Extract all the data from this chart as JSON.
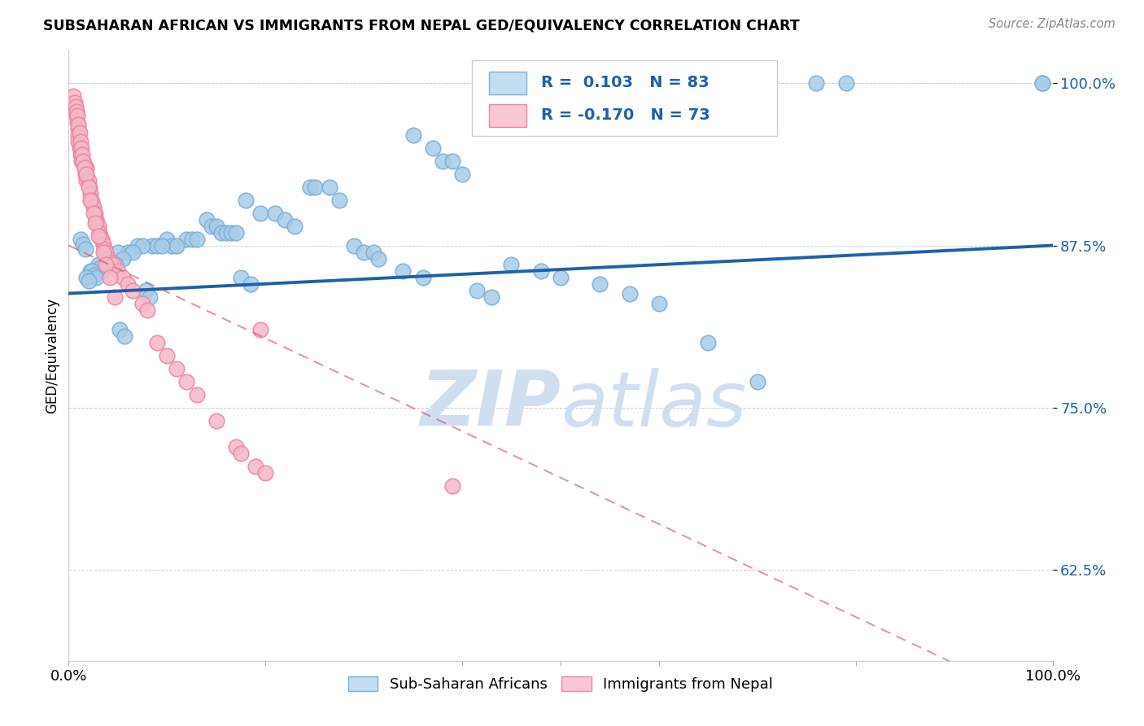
{
  "title": "SUBSAHARAN AFRICAN VS IMMIGRANTS FROM NEPAL GED/EQUIVALENCY CORRELATION CHART",
  "source": "Source: ZipAtlas.com",
  "ylabel": "GED/Equivalency",
  "xlim": [
    0.0,
    1.0
  ],
  "ylim": [
    0.555,
    1.025
  ],
  "yticks": [
    0.625,
    0.75,
    0.875,
    1.0
  ],
  "ytick_labels": [
    "62.5%",
    "75.0%",
    "87.5%",
    "100.0%"
  ],
  "legend_r1": "R =  0.103",
  "legend_n1": "N = 83",
  "legend_r2": "R = -0.170",
  "legend_n2": "N = 73",
  "blue_color": "#a8cce8",
  "blue_edge_color": "#7aafd4",
  "pink_color": "#f5b8c8",
  "pink_edge_color": "#e8889e",
  "blue_line_color": "#2060a8",
  "pink_line_color": "#d04060",
  "watermark_color": "#d0dff0",
  "blue_scatter_x": [
    0.99,
    0.99,
    0.79,
    0.76,
    0.35,
    0.37,
    0.38,
    0.39,
    0.4,
    0.245,
    0.25,
    0.265,
    0.275,
    0.18,
    0.195,
    0.14,
    0.145,
    0.15,
    0.155,
    0.16,
    0.165,
    0.17,
    0.12,
    0.125,
    0.13,
    0.1,
    0.105,
    0.11,
    0.085,
    0.09,
    0.095,
    0.07,
    0.075,
    0.06,
    0.065,
    0.05,
    0.055,
    0.038,
    0.04,
    0.042,
    0.045,
    0.048,
    0.03,
    0.032,
    0.034,
    0.022,
    0.024,
    0.026,
    0.028,
    0.018,
    0.02,
    0.21,
    0.22,
    0.23,
    0.29,
    0.3,
    0.31,
    0.315,
    0.45,
    0.48,
    0.5,
    0.54,
    0.57,
    0.6,
    0.65,
    0.7,
    0.34,
    0.36,
    0.415,
    0.43,
    0.175,
    0.185,
    0.078,
    0.082,
    0.052,
    0.057,
    0.012,
    0.015,
    0.017
  ],
  "blue_scatter_y": [
    1.0,
    1.0,
    1.0,
    1.0,
    0.96,
    0.95,
    0.94,
    0.94,
    0.93,
    0.92,
    0.92,
    0.92,
    0.91,
    0.91,
    0.9,
    0.895,
    0.89,
    0.89,
    0.885,
    0.885,
    0.885,
    0.885,
    0.88,
    0.88,
    0.88,
    0.88,
    0.875,
    0.875,
    0.875,
    0.875,
    0.875,
    0.875,
    0.875,
    0.87,
    0.87,
    0.87,
    0.865,
    0.86,
    0.86,
    0.86,
    0.86,
    0.86,
    0.86,
    0.858,
    0.855,
    0.855,
    0.855,
    0.852,
    0.85,
    0.85,
    0.848,
    0.9,
    0.895,
    0.89,
    0.875,
    0.87,
    0.87,
    0.865,
    0.86,
    0.855,
    0.85,
    0.845,
    0.838,
    0.83,
    0.8,
    0.77,
    0.855,
    0.85,
    0.84,
    0.835,
    0.85,
    0.845,
    0.84,
    0.835,
    0.81,
    0.805,
    0.88,
    0.876,
    0.872
  ],
  "pink_scatter_x": [
    0.005,
    0.007,
    0.008,
    0.009,
    0.01,
    0.01,
    0.01,
    0.011,
    0.012,
    0.013,
    0.015,
    0.016,
    0.017,
    0.018,
    0.018,
    0.02,
    0.021,
    0.022,
    0.023,
    0.024,
    0.025,
    0.027,
    0.028,
    0.029,
    0.03,
    0.031,
    0.032,
    0.034,
    0.035,
    0.036,
    0.038,
    0.04,
    0.042,
    0.045,
    0.05,
    0.055,
    0.06,
    0.065,
    0.075,
    0.08,
    0.09,
    0.1,
    0.11,
    0.12,
    0.13,
    0.15,
    0.17,
    0.175,
    0.19,
    0.2,
    0.195,
    0.39,
    0.005,
    0.006,
    0.007,
    0.008,
    0.009,
    0.01,
    0.011,
    0.012,
    0.013,
    0.014,
    0.015,
    0.016,
    0.018,
    0.02,
    0.022,
    0.025,
    0.027,
    0.03,
    0.035,
    0.038,
    0.042,
    0.047
  ],
  "pink_scatter_y": [
    0.985,
    0.98,
    0.975,
    0.97,
    0.965,
    0.96,
    0.955,
    0.95,
    0.945,
    0.94,
    0.94,
    0.935,
    0.93,
    0.935,
    0.925,
    0.925,
    0.92,
    0.915,
    0.91,
    0.908,
    0.905,
    0.9,
    0.895,
    0.892,
    0.89,
    0.885,
    0.882,
    0.88,
    0.876,
    0.872,
    0.87,
    0.865,
    0.862,
    0.86,
    0.855,
    0.85,
    0.845,
    0.84,
    0.83,
    0.825,
    0.8,
    0.79,
    0.78,
    0.77,
    0.76,
    0.74,
    0.72,
    0.715,
    0.705,
    0.7,
    0.81,
    0.69,
    0.99,
    0.985,
    0.982,
    0.978,
    0.975,
    0.968,
    0.962,
    0.955,
    0.95,
    0.945,
    0.94,
    0.935,
    0.93,
    0.92,
    0.91,
    0.9,
    0.892,
    0.882,
    0.87,
    0.86,
    0.85,
    0.835
  ],
  "blue_trend": [
    0.0,
    1.0,
    0.838,
    0.875
  ],
  "pink_trend": [
    0.0,
    0.95,
    0.875,
    0.535
  ]
}
